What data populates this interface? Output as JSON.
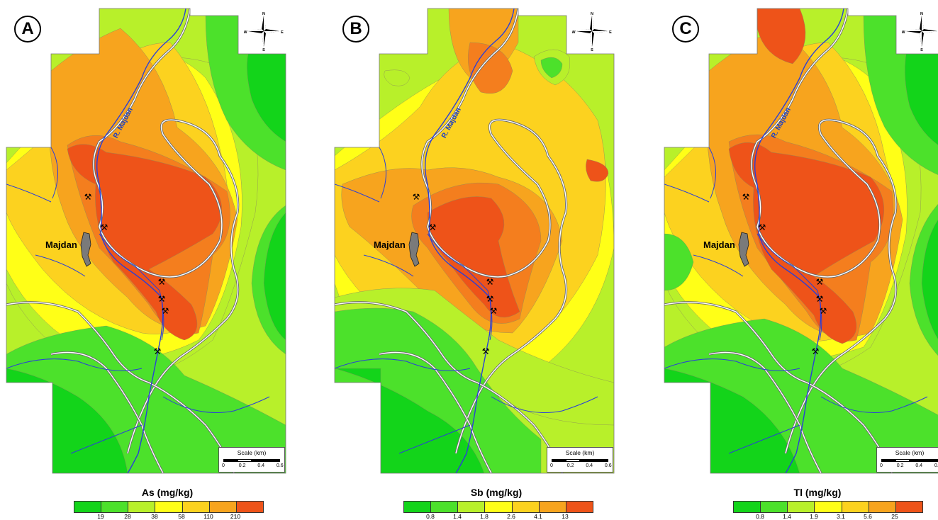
{
  "colors": {
    "c1": "#13d41a",
    "c2": "#4ce12b",
    "c3": "#b8f02a",
    "c4": "#ffff17",
    "c5": "#fcd21f",
    "c6": "#f7a41e",
    "c7": "#f47e1e",
    "c8": "#ee5319",
    "river": "#2a3fd8",
    "road": "#6b6b6b",
    "town": "#7a7a7a"
  },
  "common": {
    "town": "Majdan",
    "river": "R. Majdan",
    "scale_title": "Scale (km)",
    "scale_ticks": [
      "0",
      "0.2",
      "0.4",
      "0.6"
    ],
    "compass": {
      "n": "N",
      "s": "S",
      "e": "E",
      "w": "W"
    },
    "icons": [
      "mine-icon",
      "compass-rose-icon"
    ]
  },
  "panels": [
    {
      "letter": "A",
      "legend_title": "As (mg/kg)",
      "legend_ticks": [
        "19",
        "28",
        "38",
        "58",
        "110",
        "210"
      ]
    },
    {
      "letter": "B",
      "legend_title": "Sb (mg/kg)",
      "legend_ticks": [
        "0.8",
        "1.4",
        "1.8",
        "2.6",
        "4.1",
        "13"
      ]
    },
    {
      "letter": "C",
      "legend_title": "Tl (mg/kg)",
      "legend_ticks": [
        "0.8",
        "1.4",
        "1.9",
        "3.1",
        "5.6",
        "25"
      ]
    }
  ]
}
